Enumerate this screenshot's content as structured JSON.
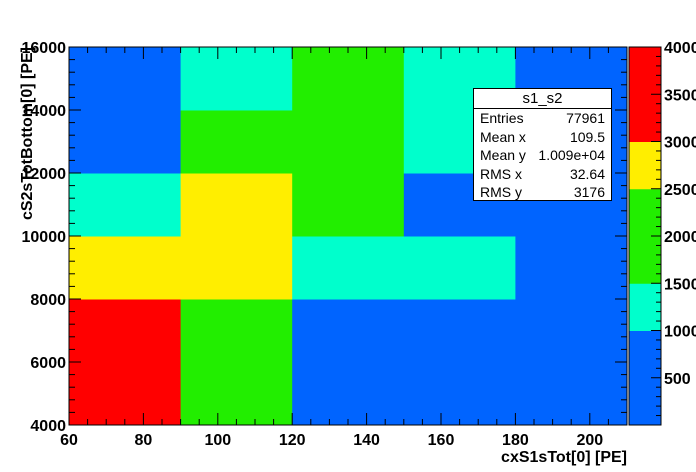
{
  "chart_data": {
    "type": "heatmap",
    "histogram_name": "s1_s2",
    "xlabel": "cxS1sTot[0]  [PE]",
    "ylabel": "cS2sTotBottom[0]  [PE]",
    "xlim": [
      60,
      210
    ],
    "ylim": [
      4000,
      16000
    ],
    "x_ticks": [
      "60",
      "80",
      "100",
      "120",
      "140",
      "160",
      "180",
      "200"
    ],
    "y_ticks": [
      "4000",
      "6000",
      "8000",
      "10000",
      "12000",
      "14000",
      "16000"
    ],
    "x_edges": [
      60,
      90,
      120,
      150,
      180,
      210
    ],
    "y_edges": [
      4000,
      6000,
      8000,
      10000,
      12000,
      14000,
      16000
    ],
    "z_levels": [
      0,
      500,
      1000,
      1500,
      2000,
      2500,
      3000,
      3500,
      4000
    ],
    "z_tick_labels": [
      "500",
      "1000",
      "1500",
      "2000",
      "2500",
      "3000",
      "3500",
      "4000"
    ],
    "palette": {
      "0": "#0064ff",
      "1": "#00ffcc",
      "2": "#22ee00",
      "3": "#ffee00",
      "4": "#ff0000"
    },
    "cells": [
      [
        4,
        2,
        0,
        0,
        0
      ],
      [
        4,
        2,
        0,
        0,
        0
      ],
      [
        3,
        3,
        1,
        1,
        0
      ],
      [
        1,
        3,
        2,
        0,
        0
      ],
      [
        0,
        2,
        2,
        1,
        0
      ],
      [
        0,
        1,
        2,
        1,
        0
      ]
    ],
    "grid": false
  },
  "stats": {
    "title": "s1_s2",
    "rows": [
      {
        "label": "Entries",
        "value": "77961"
      },
      {
        "label": "Mean x",
        "value": "109.5"
      },
      {
        "label": "Mean y",
        "value": "1.009e+04"
      },
      {
        "label": "RMS x",
        "value": "32.64"
      },
      {
        "label": "RMS y",
        "value": "3176"
      }
    ]
  }
}
